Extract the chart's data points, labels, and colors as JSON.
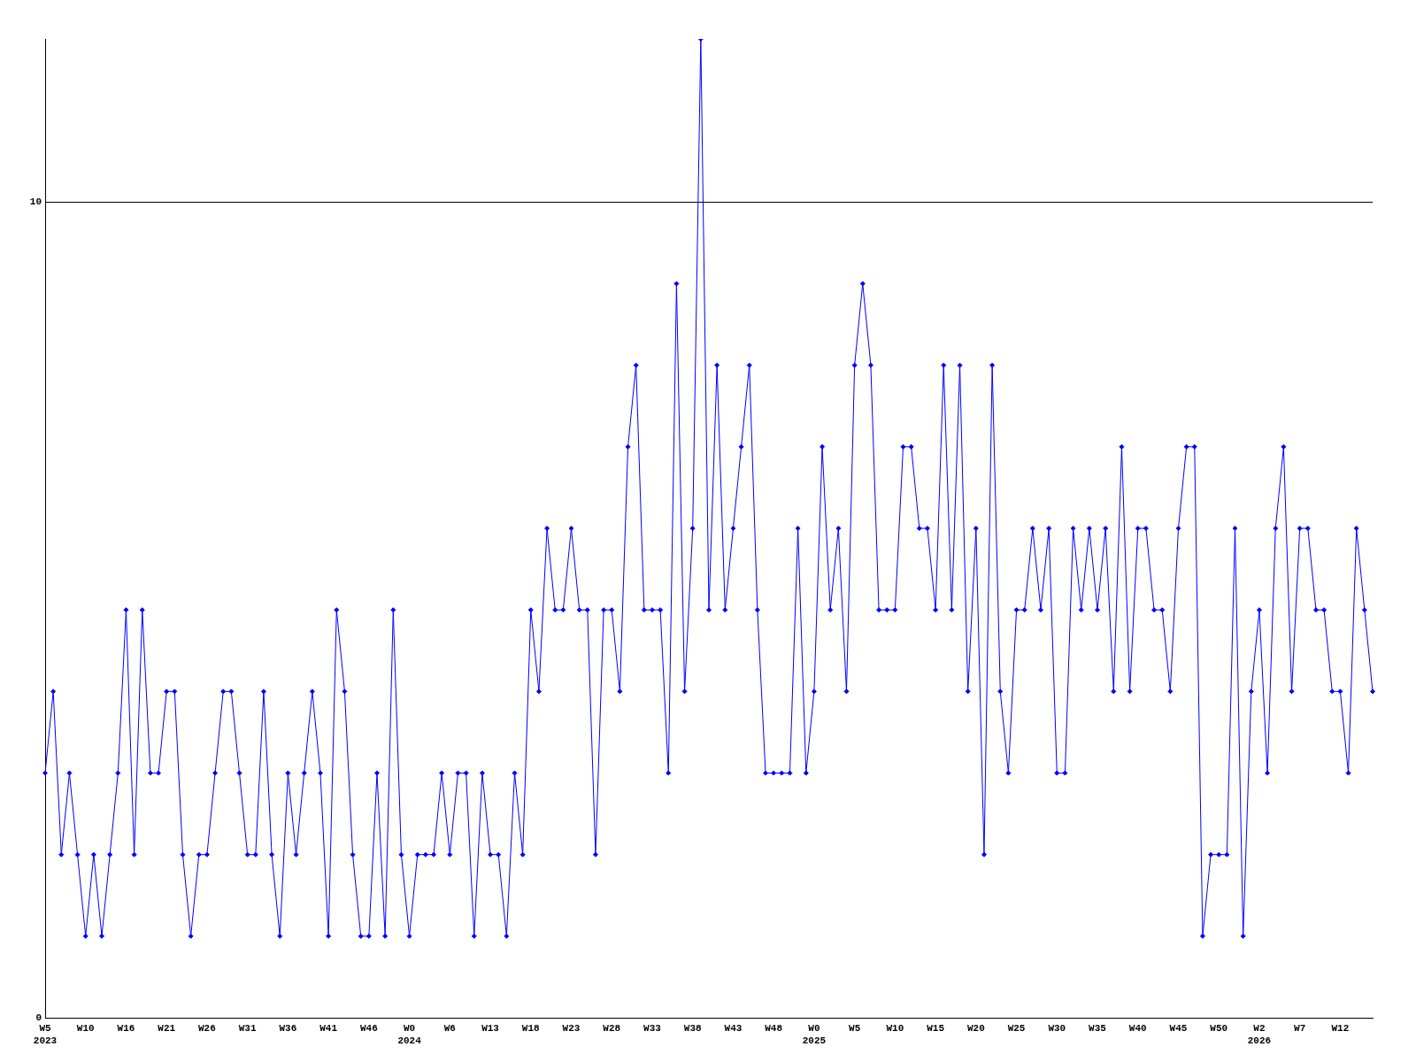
{
  "chart_data": {
    "type": "line",
    "categories": [
      "W5\n2023",
      null,
      null,
      null,
      null,
      "W10",
      null,
      null,
      null,
      null,
      "W16",
      null,
      null,
      null,
      null,
      "W21",
      null,
      null,
      null,
      null,
      "W26",
      null,
      null,
      null,
      null,
      "W31",
      null,
      null,
      null,
      null,
      "W36",
      null,
      null,
      null,
      null,
      "W41",
      null,
      null,
      null,
      null,
      "W46",
      null,
      null,
      null,
      null,
      "W0\n2024",
      null,
      null,
      null,
      null,
      "W6",
      null,
      null,
      null,
      null,
      "W13",
      null,
      null,
      null,
      null,
      "W18",
      null,
      null,
      null,
      null,
      "W23",
      null,
      null,
      null,
      null,
      "W28",
      null,
      null,
      null,
      null,
      "W33",
      null,
      null,
      null,
      null,
      "W38",
      null,
      null,
      null,
      null,
      "W43",
      null,
      null,
      null,
      null,
      "W48",
      null,
      null,
      null,
      null,
      "W0\n2025",
      null,
      null,
      null,
      null,
      "W5",
      null,
      null,
      null,
      null,
      "W10",
      null,
      null,
      null,
      null,
      "W15",
      null,
      null,
      null,
      null,
      "W20",
      null,
      null,
      null,
      null,
      "W25",
      null,
      null,
      null,
      null,
      "W30",
      null,
      null,
      null,
      null,
      "W35",
      null,
      null,
      null,
      null,
      "W40",
      null,
      null,
      null,
      null,
      "W45",
      null,
      null,
      null,
      null,
      "W50",
      null,
      null,
      null,
      null,
      "W2\n2026",
      null,
      null,
      null,
      null,
      "W7",
      null,
      null,
      null,
      null,
      "W12",
      null,
      null,
      null,
      null
    ],
    "series": [
      {
        "color": "#0000ff",
        "values": [
          3,
          4,
          2,
          3,
          2,
          1,
          2,
          1,
          2,
          3,
          5,
          2,
          5,
          3,
          3,
          4,
          4,
          2,
          1,
          2,
          2,
          3,
          4,
          4,
          3,
          2,
          2,
          4,
          2,
          1,
          3,
          2,
          3,
          4,
          3,
          1,
          5,
          4,
          2,
          1,
          1,
          3,
          1,
          5,
          2,
          1,
          2,
          2,
          2,
          3,
          2,
          3,
          3,
          1,
          3,
          2,
          2,
          1,
          3,
          2,
          5,
          4,
          6,
          5,
          5,
          6,
          5,
          5,
          2,
          5,
          5,
          4,
          7,
          8,
          5,
          5,
          5,
          3,
          9,
          4,
          6,
          12,
          5,
          8,
          5,
          6,
          7,
          8,
          5,
          3,
          3,
          3,
          3,
          6,
          3,
          4,
          7,
          5,
          6,
          4,
          8,
          9,
          8,
          5,
          5,
          5,
          7,
          7,
          6,
          6,
          5,
          8,
          5,
          8,
          4,
          6,
          2,
          8,
          4,
          3,
          5,
          5,
          6,
          5,
          6,
          3,
          3,
          6,
          5,
          6,
          5,
          6,
          4,
          7,
          4,
          6,
          6,
          5,
          5,
          4,
          6,
          7,
          7,
          1,
          2,
          2,
          2,
          6,
          1,
          4,
          5,
          3,
          6,
          7,
          4,
          6,
          6,
          5,
          5,
          4,
          4,
          3,
          6,
          5,
          4
        ]
      }
    ],
    "ylim": [
      0,
      12
    ],
    "yticks": [
      0,
      10
    ],
    "grid": "y",
    "marker": "diamond",
    "line_style": "solid"
  }
}
